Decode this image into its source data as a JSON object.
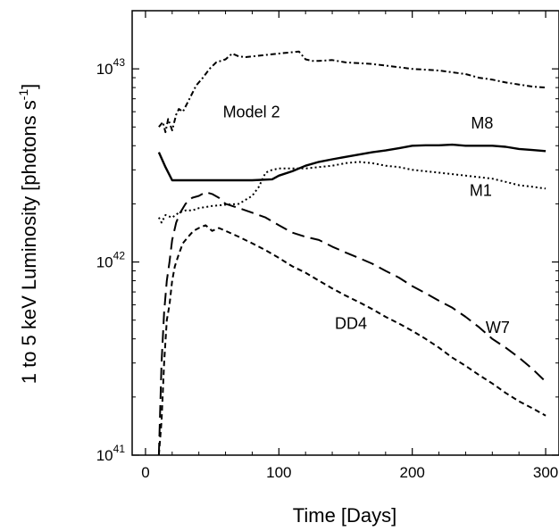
{
  "chart_data": {
    "type": "line",
    "xlabel": "Time [Days]",
    "ylabel": "1 to 5 keV Luminosity [photons s",
    "ylabel_sup": "-1",
    "ylabel_end": "]",
    "xlim": [
      -10,
      310
    ],
    "ylim": [
      1e+41,
      2e+43
    ],
    "yscale": "log",
    "x_ticks": [
      {
        "value": 0,
        "label": "0"
      },
      {
        "value": 100,
        "label": "100"
      },
      {
        "value": 200,
        "label": "200"
      },
      {
        "value": 300,
        "label": "300"
      }
    ],
    "y_ticks": [
      {
        "value": 1e+41,
        "base": "10",
        "exp": "41"
      },
      {
        "value": 1e+42,
        "base": "10",
        "exp": "42"
      },
      {
        "value": 1e+43,
        "base": "10",
        "exp": "43"
      }
    ],
    "series": [
      {
        "name": "Model 2",
        "dash": "dash-dot",
        "x": [
          10,
          13,
          15,
          17,
          20,
          23,
          25,
          28,
          33,
          38,
          43,
          48,
          53,
          60,
          65,
          70,
          75,
          80,
          90,
          100,
          110,
          115,
          120,
          125,
          130,
          140,
          150,
          160,
          170,
          180,
          190,
          200,
          210,
          220,
          230,
          240,
          250,
          260,
          270,
          280,
          290,
          300
        ],
        "y": [
          5e+42,
          5.3e+42,
          4.7e+42,
          5.5e+42,
          4.8e+42,
          5.8e+42,
          6.2e+42,
          6e+42,
          7e+42,
          8.2e+42,
          9e+42,
          1e+43,
          1.08e+43,
          1.12e+43,
          1.2e+43,
          1.16e+43,
          1.15e+43,
          1.16e+43,
          1.18e+43,
          1.2e+43,
          1.22e+43,
          1.23e+43,
          1.12e+43,
          1.1e+43,
          1.1e+43,
          1.11e+43,
          1.08e+43,
          1.07e+43,
          1.06e+43,
          1.04e+43,
          1.02e+43,
          1e+43,
          9.9e+42,
          9.8e+42,
          9.6e+42,
          9.4e+42,
          9e+42,
          8.8e+42,
          8.5e+42,
          8.3e+42,
          8.1e+42,
          8e+42
        ]
      },
      {
        "name": "M8",
        "dash": "solid",
        "x": [
          10,
          15,
          20,
          40,
          60,
          80,
          95,
          100,
          110,
          120,
          130,
          140,
          150,
          160,
          170,
          180,
          190,
          200,
          210,
          220,
          230,
          240,
          250,
          260,
          270,
          280,
          290,
          300
        ],
        "y": [
          3.7e+42,
          3.1e+42,
          2.65e+42,
          2.65e+42,
          2.65e+42,
          2.65e+42,
          2.68e+42,
          2.8e+42,
          2.95e+42,
          3.15e+42,
          3.3e+42,
          3.4e+42,
          3.5e+42,
          3.6e+42,
          3.7e+42,
          3.78e+42,
          3.88e+42,
          4e+42,
          4.02e+42,
          4.02e+42,
          4.05e+42,
          4e+42,
          4e+42,
          4e+42,
          3.95e+42,
          3.85e+42,
          3.8e+42,
          3.75e+42
        ]
      },
      {
        "name": "M1",
        "dash": "dotted",
        "x": [
          10,
          12,
          15,
          20,
          25,
          30,
          35,
          40,
          50,
          60,
          70,
          80,
          85,
          90,
          95,
          100,
          110,
          120,
          130,
          140,
          150,
          160,
          170,
          180,
          190,
          200,
          210,
          220,
          230,
          240,
          250,
          260,
          270,
          280,
          290,
          300
        ],
        "y": [
          1.7e+42,
          1.6e+42,
          1.75e+42,
          1.7e+42,
          1.8e+42,
          1.85e+42,
          1.85e+42,
          1.9e+42,
          1.95e+42,
          1.98e+42,
          2e+42,
          2.2e+42,
          2.45e+42,
          2.9e+42,
          3e+42,
          3.05e+42,
          3.05e+42,
          3.05e+42,
          3.1e+42,
          3.15e+42,
          3.25e+42,
          3.3e+42,
          3.25e+42,
          3.15e+42,
          3.1e+42,
          3e+42,
          2.95e+42,
          2.9e+42,
          2.85e+42,
          2.8e+42,
          2.75e+42,
          2.7e+42,
          2.6e+42,
          2.5e+42,
          2.45e+42,
          2.4e+42
        ]
      },
      {
        "name": "W7",
        "dash": "dashed",
        "x": [
          10,
          12,
          14,
          16,
          18,
          20,
          23,
          26,
          30,
          35,
          40,
          45,
          50,
          55,
          60,
          70,
          80,
          90,
          100,
          110,
          120,
          130,
          140,
          150,
          160,
          170,
          180,
          190,
          200,
          210,
          220,
          230,
          240,
          250,
          260,
          270,
          280,
          290,
          300
        ],
        "y": [
          1e+41,
          3e+41,
          5.5e+41,
          8e+41,
          1e+42,
          1.3e+42,
          1.6e+42,
          1.8e+42,
          2e+42,
          2.15e+42,
          2.2e+42,
          2.3e+42,
          2.25e+42,
          2.15e+42,
          2e+42,
          1.9e+42,
          1.8e+42,
          1.7e+42,
          1.55e+42,
          1.42e+42,
          1.35e+42,
          1.3e+42,
          1.2e+42,
          1.12e+42,
          1.05e+42,
          9.8e+41,
          9e+41,
          8.3e+41,
          7.5e+41,
          6.9e+41,
          6.3e+41,
          5.8e+41,
          5.2e+41,
          4.6e+41,
          4e+41,
          3.6e+41,
          3.2e+41,
          2.8e+41,
          2.4e+41
        ]
      },
      {
        "name": "DD4",
        "dash": "short-dashed",
        "x": [
          10,
          12,
          14,
          16,
          18,
          20,
          22,
          25,
          28,
          32,
          36,
          40,
          45,
          50,
          55,
          60,
          70,
          80,
          90,
          100,
          110,
          120,
          130,
          140,
          150,
          160,
          170,
          180,
          190,
          200,
          210,
          220,
          230,
          240,
          250,
          260,
          270,
          280,
          290,
          300
        ],
        "y": [
          1e+41,
          1.5e+41,
          3e+41,
          5e+41,
          6e+41,
          8e+41,
          9.5e+41,
          1.1e+42,
          1.25e+42,
          1.35e+42,
          1.45e+42,
          1.5e+42,
          1.55e+42,
          1.45e+42,
          1.5e+42,
          1.45e+42,
          1.35e+42,
          1.25e+42,
          1.15e+42,
          1.05e+42,
          9.5e+41,
          8.8e+41,
          8e+41,
          7.3e+41,
          6.7e+41,
          6.2e+41,
          5.7e+41,
          5.2e+41,
          4.8e+41,
          4.4e+41,
          4e+41,
          3.6e+41,
          3.2e+41,
          2.9e+41,
          2.6e+41,
          2.35e+41,
          2.1e+41,
          1.9e+41,
          1.75e+41,
          1.6e+41
        ]
      }
    ],
    "annotations": [
      {
        "text": "Model 2",
        "series": "Model 2",
        "x": 58,
        "y": 5.6e+42
      },
      {
        "text": "M8",
        "series": "M8",
        "x": 244,
        "y": 4.9e+42
      },
      {
        "text": "M1",
        "series": "M1",
        "x": 243,
        "y": 2.2e+42
      },
      {
        "text": "W7",
        "series": "W7",
        "x": 255,
        "y": 4.3e+41
      },
      {
        "text": "DD4",
        "series": "DD4",
        "x": 142,
        "y": 4.5e+41
      }
    ]
  }
}
